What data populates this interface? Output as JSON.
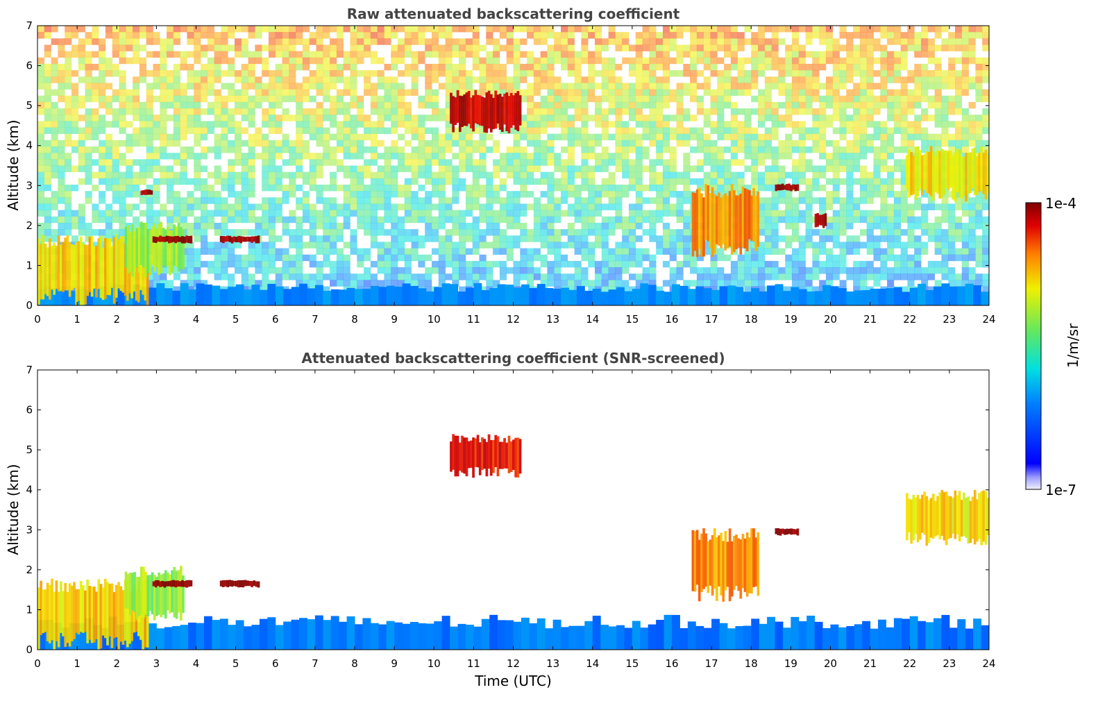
{
  "chart_data": [
    {
      "type": "heatmap",
      "title": "Raw attenuated backscattering coefficient",
      "xlabel": "",
      "ylabel": "Altitude (km)",
      "xlim": [
        0,
        24
      ],
      "ylim": [
        0,
        7
      ],
      "x_ticks": [
        "0",
        "1",
        "2",
        "3",
        "4",
        "5",
        "6",
        "7",
        "8",
        "9",
        "10",
        "11",
        "12",
        "13",
        "14",
        "15",
        "16",
        "17",
        "18",
        "19",
        "20",
        "21",
        "22",
        "23",
        "24"
      ],
      "y_ticks": [
        "0",
        "1",
        "2",
        "3",
        "4",
        "5",
        "6",
        "7"
      ],
      "screened": false,
      "features": [
        {
          "kind": "boundary-layer",
          "t_start": 0,
          "t_end": 24,
          "top_km": 0.45,
          "level": 0.12
        },
        {
          "kind": "aerosol",
          "t_start": 0,
          "t_end": 2.8,
          "bottom_km": 0,
          "top_km": 1.8,
          "level": 0.62
        },
        {
          "kind": "aerosol",
          "t_start": 2.2,
          "t_end": 3.7,
          "bottom_km": 0.7,
          "top_km": 2.1,
          "level": 0.48
        },
        {
          "kind": "cloud",
          "t_start": 2.6,
          "t_end": 2.9,
          "bottom_km": 2.75,
          "top_km": 2.9,
          "level": 0.95
        },
        {
          "kind": "cloud",
          "t_start": 2.9,
          "t_end": 3.9,
          "bottom_km": 1.55,
          "top_km": 1.75,
          "level": 0.98
        },
        {
          "kind": "cloud",
          "t_start": 4.6,
          "t_end": 5.6,
          "bottom_km": 1.55,
          "top_km": 1.75,
          "level": 0.98
        },
        {
          "kind": "cloud",
          "t_start": 10.4,
          "t_end": 12.2,
          "bottom_km": 4.3,
          "top_km": 5.4,
          "level": 0.9
        },
        {
          "kind": "cloud",
          "t_start": 16.5,
          "t_end": 18.2,
          "bottom_km": 1.2,
          "top_km": 3.05,
          "level": 0.7
        },
        {
          "kind": "cloud",
          "t_start": 18.6,
          "t_end": 19.2,
          "bottom_km": 2.85,
          "top_km": 3.05,
          "level": 0.97
        },
        {
          "kind": "cloud",
          "t_start": 19.6,
          "t_end": 19.9,
          "bottom_km": 1.9,
          "top_km": 2.35,
          "level": 0.95
        },
        {
          "kind": "cloud",
          "t_start": 21.9,
          "t_end": 24,
          "bottom_km": 2.6,
          "top_km": 4.0,
          "level": 0.6
        }
      ]
    },
    {
      "type": "heatmap",
      "title": "Attenuated backscattering coefficient (SNR-screened)",
      "xlabel": "Time (UTC)",
      "ylabel": "Altitude (km)",
      "xlim": [
        0,
        24
      ],
      "ylim": [
        0,
        7
      ],
      "x_ticks": [
        "0",
        "1",
        "2",
        "3",
        "4",
        "5",
        "6",
        "7",
        "8",
        "9",
        "10",
        "11",
        "12",
        "13",
        "14",
        "15",
        "16",
        "17",
        "18",
        "19",
        "20",
        "21",
        "22",
        "23",
        "24"
      ],
      "y_ticks": [
        "0",
        "1",
        "2",
        "3",
        "4",
        "5",
        "6",
        "7"
      ],
      "screened": true,
      "features": [
        {
          "kind": "boundary-layer",
          "t_start": 0,
          "t_end": 24,
          "top_km": 0.7,
          "level": 0.1
        },
        {
          "kind": "aerosol",
          "t_start": 0,
          "t_end": 2.8,
          "bottom_km": 0,
          "top_km": 1.8,
          "level": 0.62
        },
        {
          "kind": "aerosol",
          "t_start": 2.2,
          "t_end": 3.7,
          "bottom_km": 0.7,
          "top_km": 2.1,
          "level": 0.48
        },
        {
          "kind": "cloud",
          "t_start": 2.9,
          "t_end": 3.9,
          "bottom_km": 1.55,
          "top_km": 1.75,
          "level": 1.0
        },
        {
          "kind": "cloud",
          "t_start": 4.6,
          "t_end": 5.6,
          "bottom_km": 1.55,
          "top_km": 1.75,
          "level": 1.0
        },
        {
          "kind": "cloud",
          "t_start": 10.4,
          "t_end": 12.2,
          "bottom_km": 4.3,
          "top_km": 5.4,
          "level": 0.85
        },
        {
          "kind": "cloud",
          "t_start": 16.5,
          "t_end": 18.2,
          "bottom_km": 1.2,
          "top_km": 3.05,
          "level": 0.7
        },
        {
          "kind": "cloud",
          "t_start": 18.6,
          "t_end": 19.2,
          "bottom_km": 2.85,
          "top_km": 3.05,
          "level": 1.0
        },
        {
          "kind": "cloud",
          "t_start": 21.9,
          "t_end": 24,
          "bottom_km": 2.6,
          "top_km": 4.0,
          "level": 0.6
        }
      ]
    }
  ],
  "colorbar": {
    "label": "1/m/sr",
    "max_label": "1e-4",
    "min_label": "1e-7",
    "scale": "log",
    "range": [
      1e-07,
      0.0001
    ],
    "colormap": [
      "#0000ff",
      "#0080ff",
      "#00e0e0",
      "#60e860",
      "#f0f000",
      "#ff8000",
      "#e00000",
      "#800000"
    ]
  }
}
